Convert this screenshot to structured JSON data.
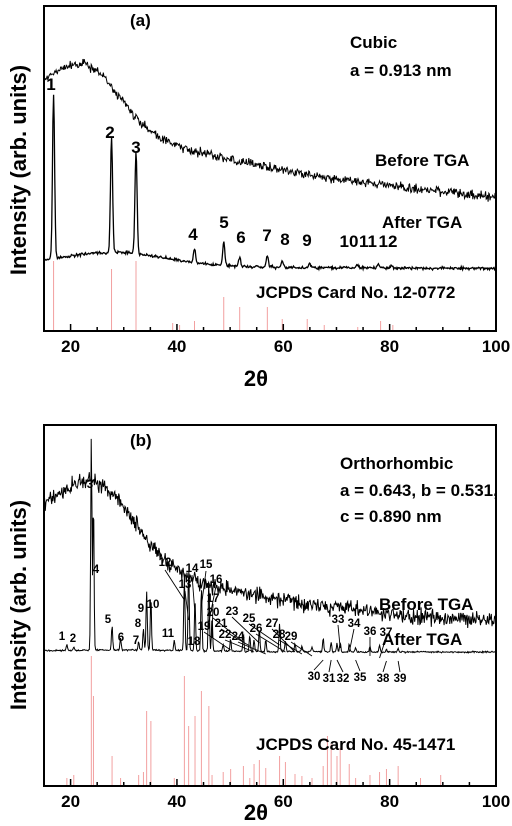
{
  "chart_data": [
    {
      "type": "line",
      "panel_label": "(a)",
      "xlabel": "2θ",
      "ylabel": "Intensity (arb. units)",
      "xlim": [
        15,
        100
      ],
      "xticks": [
        20,
        40,
        60,
        80,
        100
      ],
      "annotations": [
        "Cubic",
        "a = 0.913 nm"
      ],
      "series": [
        {
          "name": "Before TGA"
        },
        {
          "name": "After TGA"
        }
      ],
      "reference_label": "JCPDS Card No. 12-0772",
      "peaks": [
        {
          "label": "1",
          "x": 16.8
        },
        {
          "label": "2",
          "x": 27.7
        },
        {
          "label": "3",
          "x": 32.3
        },
        {
          "label": "4",
          "x": 43.3
        },
        {
          "label": "5",
          "x": 48.8
        },
        {
          "label": "6",
          "x": 51.8
        },
        {
          "label": "7",
          "x": 57.0
        },
        {
          "label": "8",
          "x": 59.8
        },
        {
          "label": "9",
          "x": 65.0
        },
        {
          "label": "10",
          "x": 74.0
        },
        {
          "label": "11",
          "x": 77.9
        },
        {
          "label": "12",
          "x": 80.3
        }
      ],
      "reference_lines": [
        16.8,
        27.7,
        32.3,
        39.2,
        40.5,
        43.3,
        48.8,
        51.8,
        57.0,
        59.8,
        64.5,
        67.7,
        74.0,
        78.3,
        80.6
      ]
    },
    {
      "type": "line",
      "panel_label": "(b)",
      "xlabel": "2θ",
      "ylabel": "Intensity (arb. units)",
      "xlim": [
        15,
        100
      ],
      "xticks": [
        20,
        40,
        60,
        80,
        100
      ],
      "annotations": [
        "Orthorhombic",
        "a = 0.643, b = 0.531,",
        "c = 0.890 nm"
      ],
      "series": [
        {
          "name": "Before TGA"
        },
        {
          "name": "After TGA"
        }
      ],
      "reference_label": "JCPDS Card No. 45-1471",
      "peaks": [
        {
          "label": "1",
          "x": 19.3
        },
        {
          "label": "2",
          "x": 20.6
        },
        {
          "label": "3",
          "x": 23.9
        },
        {
          "label": "4",
          "x": 24.3
        },
        {
          "label": "5",
          "x": 27.8
        },
        {
          "label": "6",
          "x": 29.4
        },
        {
          "label": "7",
          "x": 32.8
        },
        {
          "label": "8",
          "x": 33.7
        },
        {
          "label": "9",
          "x": 34.3
        },
        {
          "label": "10",
          "x": 35.1
        },
        {
          "label": "11",
          "x": 39.5
        },
        {
          "label": "12",
          "x": 41.4
        },
        {
          "label": "13",
          "x": 42.2
        },
        {
          "label": "14",
          "x": 43.4
        },
        {
          "label": "15",
          "x": 44.6
        },
        {
          "label": "16",
          "x": 46.0
        },
        {
          "label": "17",
          "x": 46.6
        },
        {
          "label": "18",
          "x": 48.7
        },
        {
          "label": "19",
          "x": 50.1
        },
        {
          "label": "20",
          "x": 52.5
        },
        {
          "label": "21",
          "x": 53.7
        },
        {
          "label": "22",
          "x": 54.5
        },
        {
          "label": "23",
          "x": 55.5
        },
        {
          "label": "24",
          "x": 56.7
        },
        {
          "label": "25",
          "x": 59.3
        },
        {
          "label": "26",
          "x": 60.4
        },
        {
          "label": "27",
          "x": 62.2
        },
        {
          "label": "28",
          "x": 63.5
        },
        {
          "label": "29",
          "x": 65.4
        },
        {
          "label": "30",
          "x": 67.5
        },
        {
          "label": "31",
          "x": 69.0
        },
        {
          "label": "32",
          "x": 70.1
        },
        {
          "label": "33",
          "x": 70.7
        },
        {
          "label": "34",
          "x": 72.4
        },
        {
          "label": "35",
          "x": 73.6
        },
        {
          "label": "36",
          "x": 76.3
        },
        {
          "label": "37",
          "x": 78.1
        },
        {
          "label": "38",
          "x": 79.4
        },
        {
          "label": "39",
          "x": 81.6
        }
      ],
      "reference_lines": [
        19.3,
        20.6,
        23.9,
        24.3,
        27.8,
        29.4,
        32.8,
        33.7,
        34.3,
        35.1,
        39.5,
        41.4,
        42.2,
        43.4,
        44.6,
        46.0,
        46.6,
        48.7,
        50.1,
        52.5,
        53.7,
        54.5,
        55.5,
        56.7,
        59.3,
        60.4,
        62.2,
        63.5,
        65.4,
        67.5,
        68.3,
        69.0,
        70.1,
        70.7,
        72.4,
        73.6,
        76.3,
        78.1,
        79.4,
        81.6,
        85.8,
        89.6
      ]
    }
  ]
}
